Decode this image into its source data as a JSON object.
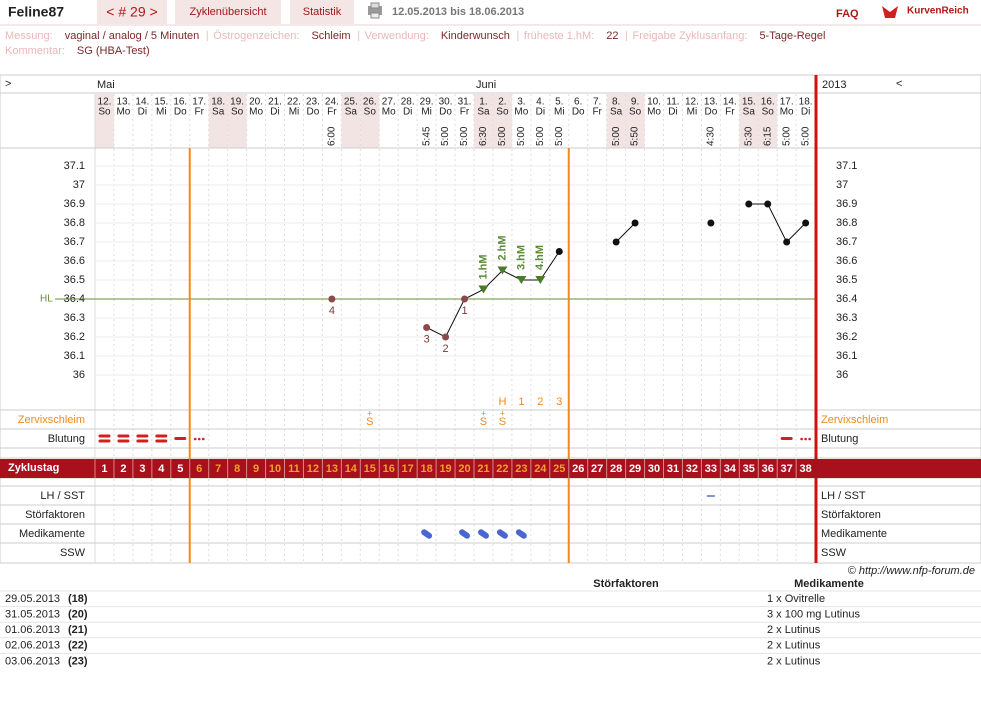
{
  "header": {
    "user": "Feline87",
    "cycle": "< # 29 >",
    "tabs": [
      "Zyklenübersicht",
      "Statistik"
    ],
    "date_range": "12.05.2013 bis 18.06.2013",
    "faq": "FAQ",
    "logo": "KurvenReich"
  },
  "info": [
    [
      {
        "label": "Messung:",
        "value": "vaginal / analog / 5 Minuten"
      },
      {
        "label": "Östrogenzeichen:",
        "value": "Schleim"
      },
      {
        "label": "Verwendung:",
        "value": "Kinderwunsch"
      },
      {
        "label": "früheste 1.hM:",
        "value": "22"
      },
      {
        "label": "Freigabe Zyklusanfang:",
        "value": "5-Tage-Regel"
      }
    ],
    [
      {
        "label": "Kommentar:",
        "value": "SG (HBA-Test)"
      }
    ]
  ],
  "nav": {
    "prev": ">",
    "next": "<",
    "year": "2013"
  },
  "months": [
    "Mai",
    "Juni"
  ],
  "dates": [
    "12.",
    "13.",
    "14.",
    "15.",
    "16.",
    "17.",
    "18.",
    "19.",
    "20.",
    "21.",
    "22.",
    "23.",
    "24.",
    "25.",
    "26.",
    "27.",
    "28.",
    "29.",
    "30.",
    "31.",
    "1.",
    "2.",
    "3.",
    "4.",
    "5.",
    "6.",
    "7.",
    "8.",
    "9.",
    "10.",
    "11.",
    "12.",
    "13.",
    "14.",
    "15.",
    "16.",
    "17.",
    "18."
  ],
  "weekdays": [
    "So",
    "Mo",
    "Di",
    "Mi",
    "Do",
    "Fr",
    "Sa",
    "So",
    "Mo",
    "Di",
    "Mi",
    "Do",
    "Fr",
    "Sa",
    "So",
    "Mo",
    "Di",
    "Mi",
    "Do",
    "Fr",
    "Sa",
    "So",
    "Mo",
    "Di",
    "Mi",
    "Do",
    "Fr",
    "Sa",
    "So",
    "Mo",
    "Di",
    "Mi",
    "Do",
    "Fr",
    "Sa",
    "So",
    "Mo",
    "Di"
  ],
  "times": [
    null,
    null,
    null,
    null,
    null,
    null,
    null,
    null,
    null,
    null,
    null,
    null,
    "6:00",
    null,
    null,
    null,
    null,
    "5:45",
    "5:00",
    "5:00",
    "6:30",
    "5:00",
    "5:00",
    "5:00",
    "5:00",
    null,
    null,
    "5:00",
    "5:50",
    null,
    null,
    null,
    "4:30",
    null,
    "5:30",
    "6:15",
    "5:00",
    "5:00"
  ],
  "rows": {
    "zervix": "Zervixschleim",
    "blutung": "Blutung",
    "zyklustag": "Zyklustag",
    "lh": "LH / SST",
    "stoer": "Störfaktoren",
    "medi": "Medikamente",
    "ssw": "SSW"
  },
  "zervix": [
    null,
    null,
    null,
    null,
    null,
    null,
    null,
    null,
    null,
    null,
    null,
    null,
    null,
    null,
    {
      "plus": "+",
      "symbol": "S"
    },
    null,
    null,
    null,
    null,
    null,
    {
      "plus": "+",
      "symbol": "S"
    },
    {
      "plus": "+",
      "symbol": "S"
    },
    null,
    null,
    null,
    null,
    null,
    null,
    null,
    null,
    null,
    null,
    null,
    null,
    null,
    null,
    null,
    null
  ],
  "peak_labels": [
    null,
    null,
    null,
    null,
    null,
    null,
    null,
    null,
    null,
    null,
    null,
    null,
    null,
    null,
    null,
    null,
    null,
    null,
    null,
    null,
    null,
    "H",
    "1",
    "2",
    "3",
    null,
    null,
    null,
    null,
    null,
    null,
    null,
    null,
    null,
    null,
    null,
    null,
    null
  ],
  "bleeding": [
    "strong",
    "strong",
    "strong",
    "strong",
    "medium",
    "spotting",
    null,
    null,
    null,
    null,
    null,
    null,
    null,
    null,
    null,
    null,
    null,
    null,
    null,
    null,
    null,
    null,
    null,
    null,
    null,
    null,
    null,
    null,
    null,
    null,
    null,
    null,
    null,
    null,
    null,
    null,
    "medium",
    "spotting"
  ],
  "lh": [
    false,
    false,
    false,
    false,
    false,
    false,
    false,
    false,
    false,
    false,
    false,
    false,
    false,
    false,
    false,
    false,
    false,
    false,
    false,
    false,
    false,
    false,
    false,
    false,
    false,
    false,
    false,
    false,
    false,
    false,
    false,
    false,
    true,
    false,
    false,
    false,
    false,
    false
  ],
  "medication": [
    false,
    false,
    false,
    false,
    false,
    false,
    false,
    false,
    false,
    false,
    false,
    false,
    false,
    false,
    false,
    false,
    false,
    true,
    false,
    true,
    true,
    true,
    true,
    false,
    false,
    false,
    false,
    false,
    false,
    false,
    false,
    false,
    false,
    false,
    false,
    false,
    false,
    false
  ],
  "phase_lines": [
    5,
    25
  ],
  "chart_data": {
    "type": "line",
    "categories": [
      1,
      2,
      3,
      4,
      5,
      6,
      7,
      8,
      9,
      10,
      11,
      12,
      13,
      14,
      15,
      16,
      17,
      18,
      19,
      20,
      21,
      22,
      23,
      24,
      25,
      26,
      27,
      28,
      29,
      30,
      31,
      32,
      33,
      34,
      35,
      36,
      37,
      38
    ],
    "values": [
      null,
      null,
      null,
      null,
      null,
      null,
      null,
      null,
      null,
      null,
      null,
      null,
      36.4,
      null,
      null,
      null,
      null,
      36.25,
      36.2,
      36.4,
      36.45,
      36.55,
      36.5,
      36.5,
      36.65,
      null,
      null,
      36.7,
      36.8,
      null,
      null,
      null,
      36.8,
      null,
      36.9,
      36.9,
      36.7,
      36.8
    ],
    "point_labels": [
      null,
      null,
      null,
      null,
      null,
      null,
      null,
      null,
      null,
      null,
      null,
      null,
      "4",
      null,
      null,
      null,
      null,
      "3",
      "2",
      "1",
      "1.hM",
      "2.hM",
      "3.hM",
      "4.hM",
      null,
      null,
      null,
      null,
      null,
      null,
      null,
      null,
      null,
      null,
      null,
      null,
      null,
      null
    ],
    "ylim": [
      35.8,
      37.2
    ],
    "yticks": [
      36,
      36.1,
      36.2,
      36.3,
      36.4,
      36.5,
      36.6,
      36.7,
      36.8,
      36.9,
      37,
      37.1
    ],
    "coverline": 36.4,
    "coverline_label": "HL",
    "grid": true
  },
  "copyright": "© http://www.nfp-forum.de",
  "notes": {
    "headers": [
      "Störfaktoren",
      "Medikamente"
    ],
    "rows": [
      [
        "29.05.2013",
        "(18)",
        "1 x Ovitrelle"
      ],
      [
        "31.05.2013",
        "(20)",
        "3 x 100 mg Lutinus"
      ],
      [
        "01.06.2013",
        "(21)",
        "2 x Lutinus"
      ],
      [
        "02.06.2013",
        "(22)",
        "2 x Lutinus"
      ],
      [
        "03.06.2013",
        "(23)",
        "2 x Lutinus"
      ]
    ]
  }
}
